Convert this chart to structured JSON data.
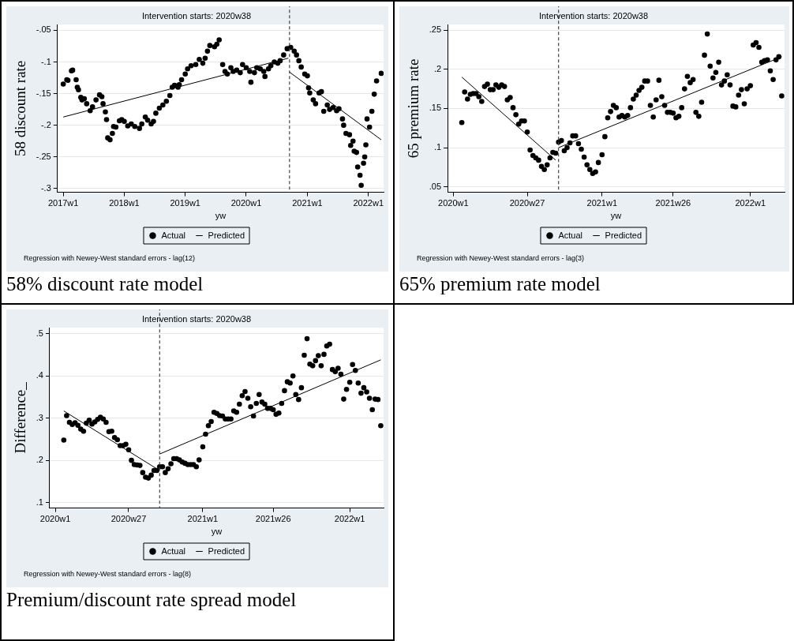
{
  "chart_data": [
    {
      "type": "scatter",
      "title": "Intervention starts: 2020w38",
      "xlabel": "yw",
      "ylabel": "58 discount rate",
      "xlim": [
        "2016-11-27",
        "2022-04-02"
      ],
      "xticks": [
        {
          "value": "2017-01-01",
          "label": "2017w1"
        },
        {
          "value": "2018-01-01",
          "label": "2018w1"
        },
        {
          "value": "2019-01-01",
          "label": "2019w1"
        },
        {
          "value": "2020-01-01",
          "label": "2020w1"
        },
        {
          "value": "2021-01-01",
          "label": "2021w1"
        },
        {
          "value": "2022-01-01",
          "label": "2022w1"
        }
      ],
      "ylim": [
        -0.306,
        -0.041
      ],
      "yticks": [
        {
          "value": -0.3,
          "label": "-.3"
        },
        {
          "value": -0.25,
          "label": "-.25"
        },
        {
          "value": -0.2,
          "label": "-.2"
        },
        {
          "value": -0.15,
          "label": "-.15"
        },
        {
          "value": -0.1,
          "label": "-.1"
        },
        {
          "value": -0.05,
          "label": "-.05"
        }
      ],
      "grid": "y",
      "legend": "bottom",
      "ref_lines": [
        {
          "axis": "x",
          "value": "2020-09-16",
          "color": "#444444",
          "line_style": "dashed"
        }
      ],
      "annotations": [
        "Regression with Newey-West standard errors - lag(12)",
        "58% discount rate model"
      ],
      "series": [
        {
          "name": "Actual",
          "type": "scatter",
          "marker": "circle",
          "color": "#000000",
          "x": [
            "2017-01-01",
            "2017-01-22",
            "2017-01-29",
            "2017-02-19",
            "2017-02-26",
            "2017-03-19",
            "2017-03-26",
            "2017-04-02",
            "2017-04-16",
            "2017-04-23",
            "2017-05-07",
            "2017-05-21",
            "2017-06-11",
            "2017-06-25",
            "2017-07-16",
            "2017-08-06",
            "2017-08-20",
            "2017-08-27",
            "2017-09-10",
            "2017-09-17",
            "2017-09-24",
            "2017-10-08",
            "2017-10-22",
            "2017-10-29",
            "2017-11-12",
            "2017-12-03",
            "2017-12-17",
            "2018-01-01",
            "2018-01-22",
            "2018-02-12",
            "2018-03-05",
            "2018-04-02",
            "2018-04-16",
            "2018-05-07",
            "2018-05-21",
            "2018-06-11",
            "2018-06-25",
            "2018-07-09",
            "2018-07-30",
            "2018-08-20",
            "2018-09-10",
            "2018-10-01",
            "2018-10-15",
            "2018-10-29",
            "2018-11-19",
            "2018-11-26",
            "2018-12-10",
            "2019-01-01",
            "2019-01-15",
            "2019-02-05",
            "2019-03-05",
            "2019-03-26",
            "2019-04-16",
            "2019-04-30",
            "2019-05-14",
            "2019-05-28",
            "2019-06-25",
            "2019-07-09",
            "2019-07-23",
            "2019-08-13",
            "2019-08-27",
            "2019-09-10",
            "2019-10-01",
            "2019-10-15",
            "2019-11-05",
            "2019-11-26",
            "2019-12-10",
            "2020-01-01",
            "2020-01-22",
            "2020-01-29",
            "2020-02-19",
            "2020-03-04",
            "2020-03-25",
            "2020-04-15",
            "2020-04-22",
            "2020-05-13",
            "2020-05-27",
            "2020-06-17",
            "2020-07-08",
            "2020-07-22",
            "2020-08-12",
            "2020-09-02",
            "2020-09-23",
            "2020-10-14",
            "2020-10-28",
            "2020-11-11",
            "2020-11-25",
            "2020-12-16",
            "2021-01-01",
            "2021-01-08",
            "2021-01-15",
            "2021-02-05",
            "2021-02-19",
            "2021-03-12",
            "2021-03-26",
            "2021-04-09",
            "2021-04-30",
            "2021-05-14",
            "2021-06-04",
            "2021-06-25",
            "2021-07-09",
            "2021-07-30",
            "2021-08-06",
            "2021-08-20",
            "2021-09-10",
            "2021-09-17",
            "2021-10-01",
            "2021-10-08",
            "2021-10-22",
            "2021-10-29",
            "2021-11-12",
            "2021-11-19",
            "2021-12-03",
            "2021-12-10",
            "2021-12-17",
            "2021-12-24",
            "2022-01-08",
            "2022-01-22",
            "2022-02-05",
            "2022-02-19",
            "2022-03-19"
          ],
          "values": [
            -0.135,
            -0.128,
            -0.129,
            -0.114,
            -0.113,
            -0.128,
            -0.14,
            -0.144,
            -0.156,
            -0.16,
            -0.158,
            -0.166,
            -0.177,
            -0.171,
            -0.16,
            -0.152,
            -0.155,
            -0.166,
            -0.179,
            -0.191,
            -0.22,
            -0.223,
            -0.213,
            -0.202,
            -0.203,
            -0.193,
            -0.191,
            -0.194,
            -0.201,
            -0.198,
            -0.202,
            -0.205,
            -0.198,
            -0.187,
            -0.192,
            -0.198,
            -0.194,
            -0.181,
            -0.173,
            -0.168,
            -0.162,
            -0.153,
            -0.14,
            -0.137,
            -0.14,
            -0.136,
            -0.128,
            -0.119,
            -0.111,
            -0.106,
            -0.104,
            -0.096,
            -0.102,
            -0.094,
            -0.083,
            -0.074,
            -0.076,
            -0.072,
            -0.065,
            -0.104,
            -0.115,
            -0.119,
            -0.109,
            -0.115,
            -0.113,
            -0.117,
            -0.104,
            -0.109,
            -0.115,
            -0.132,
            -0.117,
            -0.109,
            -0.111,
            -0.115,
            -0.123,
            -0.111,
            -0.106,
            -0.1,
            -0.102,
            -0.098,
            -0.089,
            -0.079,
            -0.077,
            -0.083,
            -0.089,
            -0.098,
            -0.108,
            -0.119,
            -0.122,
            -0.141,
            -0.149,
            -0.16,
            -0.166,
            -0.149,
            -0.147,
            -0.178,
            -0.168,
            -0.175,
            -0.172,
            -0.177,
            -0.174,
            -0.19,
            -0.2,
            -0.213,
            -0.215,
            -0.232,
            -0.225,
            -0.241,
            -0.243,
            -0.266,
            -0.279,
            -0.295,
            -0.26,
            -0.25,
            -0.231,
            -0.19,
            -0.203,
            -0.178,
            -0.151,
            -0.13,
            -0.118
          ]
        },
        {
          "name": "Predicted",
          "type": "line",
          "color": "#000000",
          "x": [
            "2017-01-01",
            "2020-09-09"
          ],
          "values": [
            -0.187,
            -0.094
          ]
        },
        {
          "type": "line",
          "color": "#000000",
          "x": [
            "2020-09-16",
            "2022-03-19"
          ],
          "values": [
            -0.116,
            -0.223
          ]
        }
      ]
    },
    {
      "type": "scatter",
      "title": "Intervention starts: 2020w38",
      "xlabel": "yw",
      "ylabel": "65 premium rate",
      "xlim": [
        "2019-12-18",
        "2022-03-26"
      ],
      "xticks": [
        {
          "value": "2020-01-01",
          "label": "2020w1"
        },
        {
          "value": "2020-07-01",
          "label": "2020w27"
        },
        {
          "value": "2021-01-01",
          "label": "2021w1"
        },
        {
          "value": "2021-06-25",
          "label": "2021w26"
        },
        {
          "value": "2022-01-01",
          "label": "2022w1"
        }
      ],
      "ylim": [
        0.043,
        0.257
      ],
      "yticks": [
        {
          "value": 0.05,
          "label": ".05"
        },
        {
          "value": 0.1,
          "label": ".1"
        },
        {
          "value": 0.15,
          "label": ".15"
        },
        {
          "value": 0.2,
          "label": ".2"
        },
        {
          "value": 0.25,
          "label": ".25"
        }
      ],
      "grid": "y",
      "legend": "bottom",
      "ref_lines": [
        {
          "axis": "x",
          "value": "2020-09-16",
          "color": "#444444",
          "line_style": "dashed"
        }
      ],
      "annotations": [
        "Regression with Newey-West standard errors - lag(3)",
        "65% premium rate model"
      ],
      "series": [
        {
          "name": "Actual",
          "type": "scatter",
          "marker": "circle",
          "color": "#000000",
          "x": [
            "2020-01-22",
            "2020-01-29",
            "2020-02-05",
            "2020-02-12",
            "2020-02-19",
            "2020-02-26",
            "2020-03-04",
            "2020-03-11",
            "2020-03-18",
            "2020-03-25",
            "2020-04-01",
            "2020-04-08",
            "2020-04-15",
            "2020-04-22",
            "2020-04-29",
            "2020-05-06",
            "2020-05-13",
            "2020-05-20",
            "2020-05-27",
            "2020-06-03",
            "2020-06-10",
            "2020-06-17",
            "2020-06-24",
            "2020-07-01",
            "2020-07-08",
            "2020-07-15",
            "2020-07-22",
            "2020-07-29",
            "2020-08-05",
            "2020-08-12",
            "2020-08-19",
            "2020-08-26",
            "2020-09-02",
            "2020-09-09",
            "2020-09-16",
            "2020-09-23",
            "2020-09-30",
            "2020-10-07",
            "2020-10-14",
            "2020-10-21",
            "2020-10-28",
            "2020-11-04",
            "2020-11-11",
            "2020-11-18",
            "2020-11-25",
            "2020-12-02",
            "2020-12-09",
            "2020-12-16",
            "2020-12-23",
            "2021-01-01",
            "2021-01-08",
            "2021-01-15",
            "2021-01-22",
            "2021-01-29",
            "2021-02-05",
            "2021-02-12",
            "2021-02-19",
            "2021-02-26",
            "2021-03-05",
            "2021-03-12",
            "2021-03-19",
            "2021-03-26",
            "2021-04-02",
            "2021-04-09",
            "2021-04-16",
            "2021-04-23",
            "2021-04-30",
            "2021-05-07",
            "2021-05-14",
            "2021-05-21",
            "2021-05-28",
            "2021-06-04",
            "2021-06-11",
            "2021-06-18",
            "2021-06-25",
            "2021-07-02",
            "2021-07-09",
            "2021-07-16",
            "2021-07-23",
            "2021-07-30",
            "2021-08-06",
            "2021-08-13",
            "2021-08-20",
            "2021-08-27",
            "2021-09-03",
            "2021-09-10",
            "2021-09-17",
            "2021-09-24",
            "2021-10-01",
            "2021-10-08",
            "2021-10-15",
            "2021-10-22",
            "2021-10-29",
            "2021-11-05",
            "2021-11-12",
            "2021-11-19",
            "2021-11-26",
            "2021-12-03",
            "2021-12-10",
            "2021-12-17",
            "2021-12-24",
            "2022-01-01",
            "2022-01-08",
            "2022-01-15",
            "2022-01-22",
            "2022-01-29",
            "2022-02-05",
            "2022-02-12",
            "2022-02-19",
            "2022-02-26",
            "2022-03-05",
            "2022-03-12",
            "2022-03-19"
          ],
          "values": [
            0.132,
            0.171,
            0.162,
            0.168,
            0.169,
            0.169,
            0.165,
            0.159,
            0.178,
            0.181,
            0.174,
            0.174,
            0.18,
            0.177,
            0.18,
            0.178,
            0.161,
            0.164,
            0.151,
            0.142,
            0.13,
            0.134,
            0.134,
            0.12,
            0.097,
            0.09,
            0.087,
            0.084,
            0.076,
            0.072,
            0.078,
            0.087,
            0.094,
            0.093,
            0.107,
            0.109,
            0.096,
            0.1,
            0.106,
            0.115,
            0.115,
            0.105,
            0.098,
            0.088,
            0.078,
            0.072,
            0.067,
            0.069,
            0.081,
            0.091,
            0.114,
            0.138,
            0.146,
            0.154,
            0.151,
            0.139,
            0.141,
            0.139,
            0.141,
            0.151,
            0.162,
            0.167,
            0.173,
            0.177,
            0.185,
            0.185,
            0.154,
            0.139,
            0.161,
            0.186,
            0.165,
            0.154,
            0.145,
            0.145,
            0.144,
            0.138,
            0.14,
            0.151,
            0.175,
            0.191,
            0.183,
            0.187,
            0.145,
            0.14,
            0.158,
            0.218,
            0.245,
            0.204,
            0.189,
            0.196,
            0.209,
            0.18,
            0.185,
            0.193,
            0.18,
            0.153,
            0.152,
            0.167,
            0.174,
            0.156,
            0.175,
            0.179,
            0.231,
            0.234,
            0.228,
            0.209,
            0.211,
            0.212,
            0.198,
            0.187,
            0.212,
            0.216,
            0.166
          ]
        },
        {
          "name": "Predicted",
          "type": "line",
          "color": "#000000",
          "x": [
            "2020-01-22",
            "2020-09-09"
          ],
          "values": [
            0.19,
            0.084
          ]
        },
        {
          "type": "line",
          "color": "#000000",
          "x": [
            "2020-09-16",
            "2022-03-19"
          ],
          "values": [
            0.1,
            0.216
          ]
        }
      ]
    },
    {
      "type": "scatter",
      "title": "Intervention starts: 2020w38",
      "xlabel": "yw",
      "ylabel": "Difference_",
      "xlim": [
        "2019-12-18",
        "2022-03-26"
      ],
      "xticks": [
        {
          "value": "2020-01-01",
          "label": "2020w1"
        },
        {
          "value": "2020-07-01",
          "label": "2020w27"
        },
        {
          "value": "2021-01-01",
          "label": "2021w1"
        },
        {
          "value": "2021-06-25",
          "label": "2021w26"
        },
        {
          "value": "2022-01-01",
          "label": "2022w1"
        }
      ],
      "ylim": [
        0.087,
        0.514
      ],
      "yticks": [
        {
          "value": 0.1,
          "label": ".1"
        },
        {
          "value": 0.2,
          "label": ".2"
        },
        {
          "value": 0.3,
          "label": ".3"
        },
        {
          "value": 0.4,
          "label": ".4"
        },
        {
          "value": 0.5,
          "label": ".5"
        }
      ],
      "grid": "y",
      "legend": "bottom",
      "ref_lines": [
        {
          "axis": "x",
          "value": "2020-09-16",
          "color": "#444444",
          "line_style": "dashed"
        }
      ],
      "annotations": [
        "Regression with Newey-West standard errors - lag(8)",
        "Premium/discount rate spread model"
      ],
      "series": [
        {
          "name": "Actual",
          "type": "scatter",
          "marker": "circle",
          "color": "#000000",
          "x": [
            "2020-01-22",
            "2020-01-29",
            "2020-02-05",
            "2020-02-12",
            "2020-02-19",
            "2020-02-26",
            "2020-03-04",
            "2020-03-11",
            "2020-03-18",
            "2020-03-25",
            "2020-04-01",
            "2020-04-08",
            "2020-04-15",
            "2020-04-22",
            "2020-04-29",
            "2020-05-06",
            "2020-05-13",
            "2020-05-20",
            "2020-05-27",
            "2020-06-03",
            "2020-06-10",
            "2020-06-17",
            "2020-06-24",
            "2020-07-01",
            "2020-07-08",
            "2020-07-15",
            "2020-07-22",
            "2020-07-29",
            "2020-08-05",
            "2020-08-12",
            "2020-08-19",
            "2020-08-26",
            "2020-09-02",
            "2020-09-09",
            "2020-09-16",
            "2020-09-23",
            "2020-09-30",
            "2020-10-07",
            "2020-10-14",
            "2020-10-21",
            "2020-10-28",
            "2020-11-04",
            "2020-11-11",
            "2020-11-18",
            "2020-11-25",
            "2020-12-02",
            "2020-12-09",
            "2020-12-16",
            "2020-12-23",
            "2021-01-01",
            "2021-01-08",
            "2021-01-15",
            "2021-01-22",
            "2021-01-29",
            "2021-02-05",
            "2021-02-12",
            "2021-02-19",
            "2021-02-26",
            "2021-03-05",
            "2021-03-12",
            "2021-03-19",
            "2021-03-26",
            "2021-04-02",
            "2021-04-09",
            "2021-04-16",
            "2021-04-23",
            "2021-04-30",
            "2021-05-07",
            "2021-05-14",
            "2021-05-21",
            "2021-05-28",
            "2021-06-04",
            "2021-06-11",
            "2021-06-18",
            "2021-06-25",
            "2021-07-02",
            "2021-07-09",
            "2021-07-16",
            "2021-07-23",
            "2021-07-30",
            "2021-08-06",
            "2021-08-13",
            "2021-08-20",
            "2021-08-27",
            "2021-09-03",
            "2021-09-10",
            "2021-09-17",
            "2021-09-24",
            "2021-10-01",
            "2021-10-08",
            "2021-10-15",
            "2021-10-22",
            "2021-10-29",
            "2021-11-05",
            "2021-11-12",
            "2021-11-19",
            "2021-11-26",
            "2021-12-03",
            "2021-12-10",
            "2021-12-17",
            "2021-12-24",
            "2022-01-01",
            "2022-01-08",
            "2022-01-15",
            "2022-01-22",
            "2022-01-29",
            "2022-02-05",
            "2022-02-12",
            "2022-02-19",
            "2022-02-26",
            "2022-03-05",
            "2022-03-12",
            "2022-03-19"
          ],
          "values": [
            0.248,
            0.306,
            0.29,
            0.285,
            0.289,
            0.283,
            0.274,
            0.269,
            0.288,
            0.295,
            0.286,
            0.291,
            0.297,
            0.302,
            0.298,
            0.29,
            0.268,
            0.269,
            0.254,
            0.249,
            0.235,
            0.235,
            0.238,
            0.225,
            0.2,
            0.19,
            0.189,
            0.188,
            0.171,
            0.16,
            0.158,
            0.165,
            0.176,
            0.176,
            0.185,
            0.185,
            0.171,
            0.18,
            0.192,
            0.204,
            0.204,
            0.201,
            0.196,
            0.193,
            0.19,
            0.19,
            0.19,
            0.185,
            0.201,
            0.232,
            0.262,
            0.282,
            0.292,
            0.314,
            0.311,
            0.306,
            0.305,
            0.298,
            0.298,
            0.298,
            0.317,
            0.314,
            0.333,
            0.353,
            0.363,
            0.347,
            0.327,
            0.305,
            0.335,
            0.356,
            0.338,
            0.333,
            0.323,
            0.323,
            0.32,
            0.309,
            0.312,
            0.335,
            0.365,
            0.386,
            0.383,
            0.4,
            0.356,
            0.344,
            0.372,
            0.449,
            0.488,
            0.428,
            0.424,
            0.436,
            0.448,
            0.424,
            0.451,
            0.471,
            0.475,
            0.415,
            0.41,
            0.418,
            0.404,
            0.345,
            0.368,
            0.385,
            0.427,
            0.413,
            0.383,
            0.359,
            0.372,
            0.362,
            0.347,
            0.32,
            0.345,
            0.344,
            0.282
          ]
        },
        {
          "name": "Predicted",
          "type": "line",
          "color": "#000000",
          "x": [
            "2020-01-22",
            "2020-09-09"
          ],
          "values": [
            0.317,
            0.18
          ]
        },
        {
          "type": "line",
          "color": "#000000",
          "x": [
            "2020-09-16",
            "2022-03-19"
          ],
          "values": [
            0.215,
            0.438
          ]
        }
      ]
    }
  ]
}
